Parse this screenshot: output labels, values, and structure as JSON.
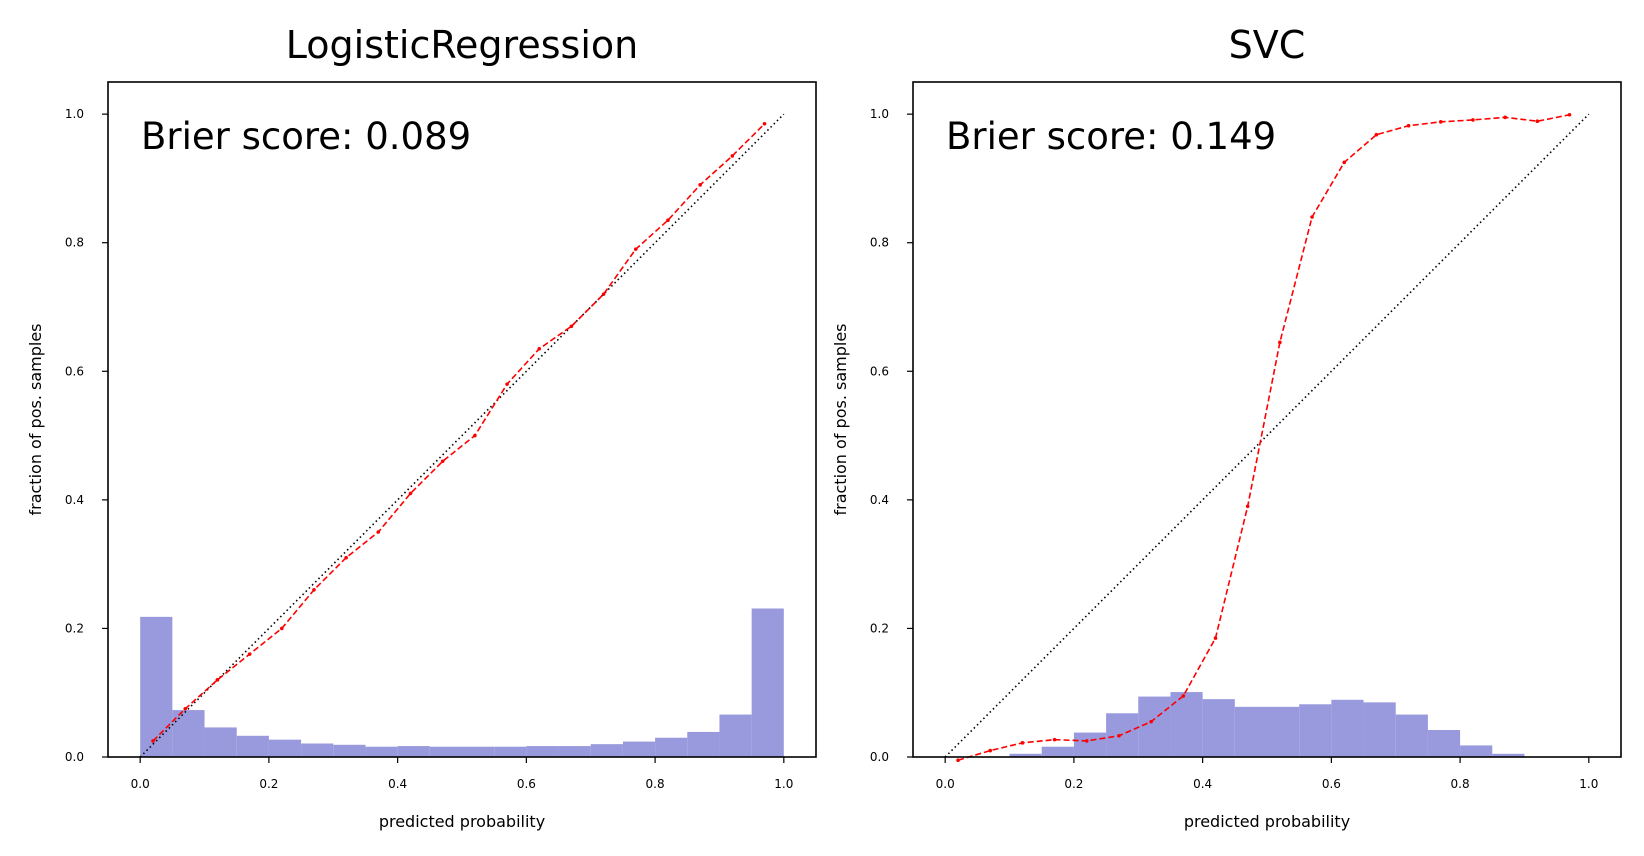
{
  "chart_data": [
    {
      "type": "line",
      "title": "LogisticRegression",
      "xlabel": "predicted probability",
      "ylabel": "fraction of pos. samples",
      "annotation": "Brier score: 0.089",
      "xlim": [
        -0.05,
        1.05
      ],
      "ylim": [
        0.0,
        1.05
      ],
      "xticks": [
        "0.0",
        "0.2",
        "0.4",
        "0.6",
        "0.8",
        "1.0"
      ],
      "yticks": [
        "0.0",
        "0.2",
        "0.4",
        "0.6",
        "0.8",
        "1.0"
      ],
      "grid": false,
      "reference_line": {
        "x": [
          0,
          1
        ],
        "y": [
          0,
          1
        ],
        "style": "dotted",
        "color": "#000000"
      },
      "series": [
        {
          "style": "dashed",
          "marker": "dot",
          "color": "#ff0000",
          "x": [
            0.02,
            0.07,
            0.12,
            0.17,
            0.22,
            0.27,
            0.32,
            0.37,
            0.42,
            0.47,
            0.52,
            0.57,
            0.62,
            0.67,
            0.72,
            0.77,
            0.82,
            0.87,
            0.92,
            0.97
          ],
          "y": [
            0.025,
            0.075,
            0.12,
            0.16,
            0.2,
            0.26,
            0.31,
            0.35,
            0.41,
            0.46,
            0.5,
            0.58,
            0.635,
            0.67,
            0.72,
            0.79,
            0.835,
            0.89,
            0.935,
            0.985
          ]
        }
      ],
      "histogram": {
        "color": "#9999dd",
        "bin_edges": [
          0.0,
          0.05,
          0.1,
          0.15,
          0.2,
          0.25,
          0.3,
          0.35,
          0.4,
          0.45,
          0.5,
          0.55,
          0.6,
          0.65,
          0.7,
          0.75,
          0.8,
          0.85,
          0.9,
          0.95,
          1.0
        ],
        "heights": [
          0.218,
          0.073,
          0.046,
          0.033,
          0.027,
          0.021,
          0.019,
          0.016,
          0.017,
          0.016,
          0.016,
          0.016,
          0.017,
          0.017,
          0.02,
          0.024,
          0.03,
          0.039,
          0.066,
          0.231
        ]
      }
    },
    {
      "type": "line",
      "title": "SVC",
      "xlabel": "predicted probability",
      "ylabel": "fraction of pos. samples",
      "annotation": "Brier score: 0.149",
      "xlim": [
        -0.05,
        1.05
      ],
      "ylim": [
        0.0,
        1.05
      ],
      "xticks": [
        "0.0",
        "0.2",
        "0.4",
        "0.6",
        "0.8",
        "1.0"
      ],
      "yticks": [
        "0.0",
        "0.2",
        "0.4",
        "0.6",
        "0.8",
        "1.0"
      ],
      "grid": false,
      "reference_line": {
        "x": [
          0,
          1
        ],
        "y": [
          0,
          1
        ],
        "style": "dotted",
        "color": "#000000"
      },
      "series": [
        {
          "style": "dashed",
          "marker": "dot",
          "color": "#ff0000",
          "x": [
            0.02,
            0.07,
            0.12,
            0.17,
            0.22,
            0.27,
            0.32,
            0.37,
            0.42,
            0.47,
            0.52,
            0.57,
            0.62,
            0.67,
            0.72,
            0.77,
            0.82,
            0.87,
            0.92,
            0.97
          ],
          "y": [
            -0.005,
            0.01,
            0.022,
            0.027,
            0.025,
            0.033,
            0.055,
            0.095,
            0.185,
            0.39,
            0.645,
            0.84,
            0.925,
            0.968,
            0.982,
            0.988,
            0.991,
            0.995,
            0.989,
            0.999
          ]
        }
      ],
      "histogram": {
        "color": "#9999dd",
        "bin_edges": [
          0.0,
          0.05,
          0.1,
          0.15,
          0.2,
          0.25,
          0.3,
          0.35,
          0.4,
          0.45,
          0.5,
          0.55,
          0.6,
          0.65,
          0.7,
          0.75,
          0.8,
          0.85,
          0.9,
          0.95,
          1.0
        ],
        "heights": [
          0.0,
          0.0,
          0.005,
          0.016,
          0.038,
          0.068,
          0.094,
          0.101,
          0.09,
          0.078,
          0.078,
          0.082,
          0.089,
          0.085,
          0.066,
          0.042,
          0.018,
          0.005,
          0.0,
          0.0
        ]
      }
    }
  ]
}
